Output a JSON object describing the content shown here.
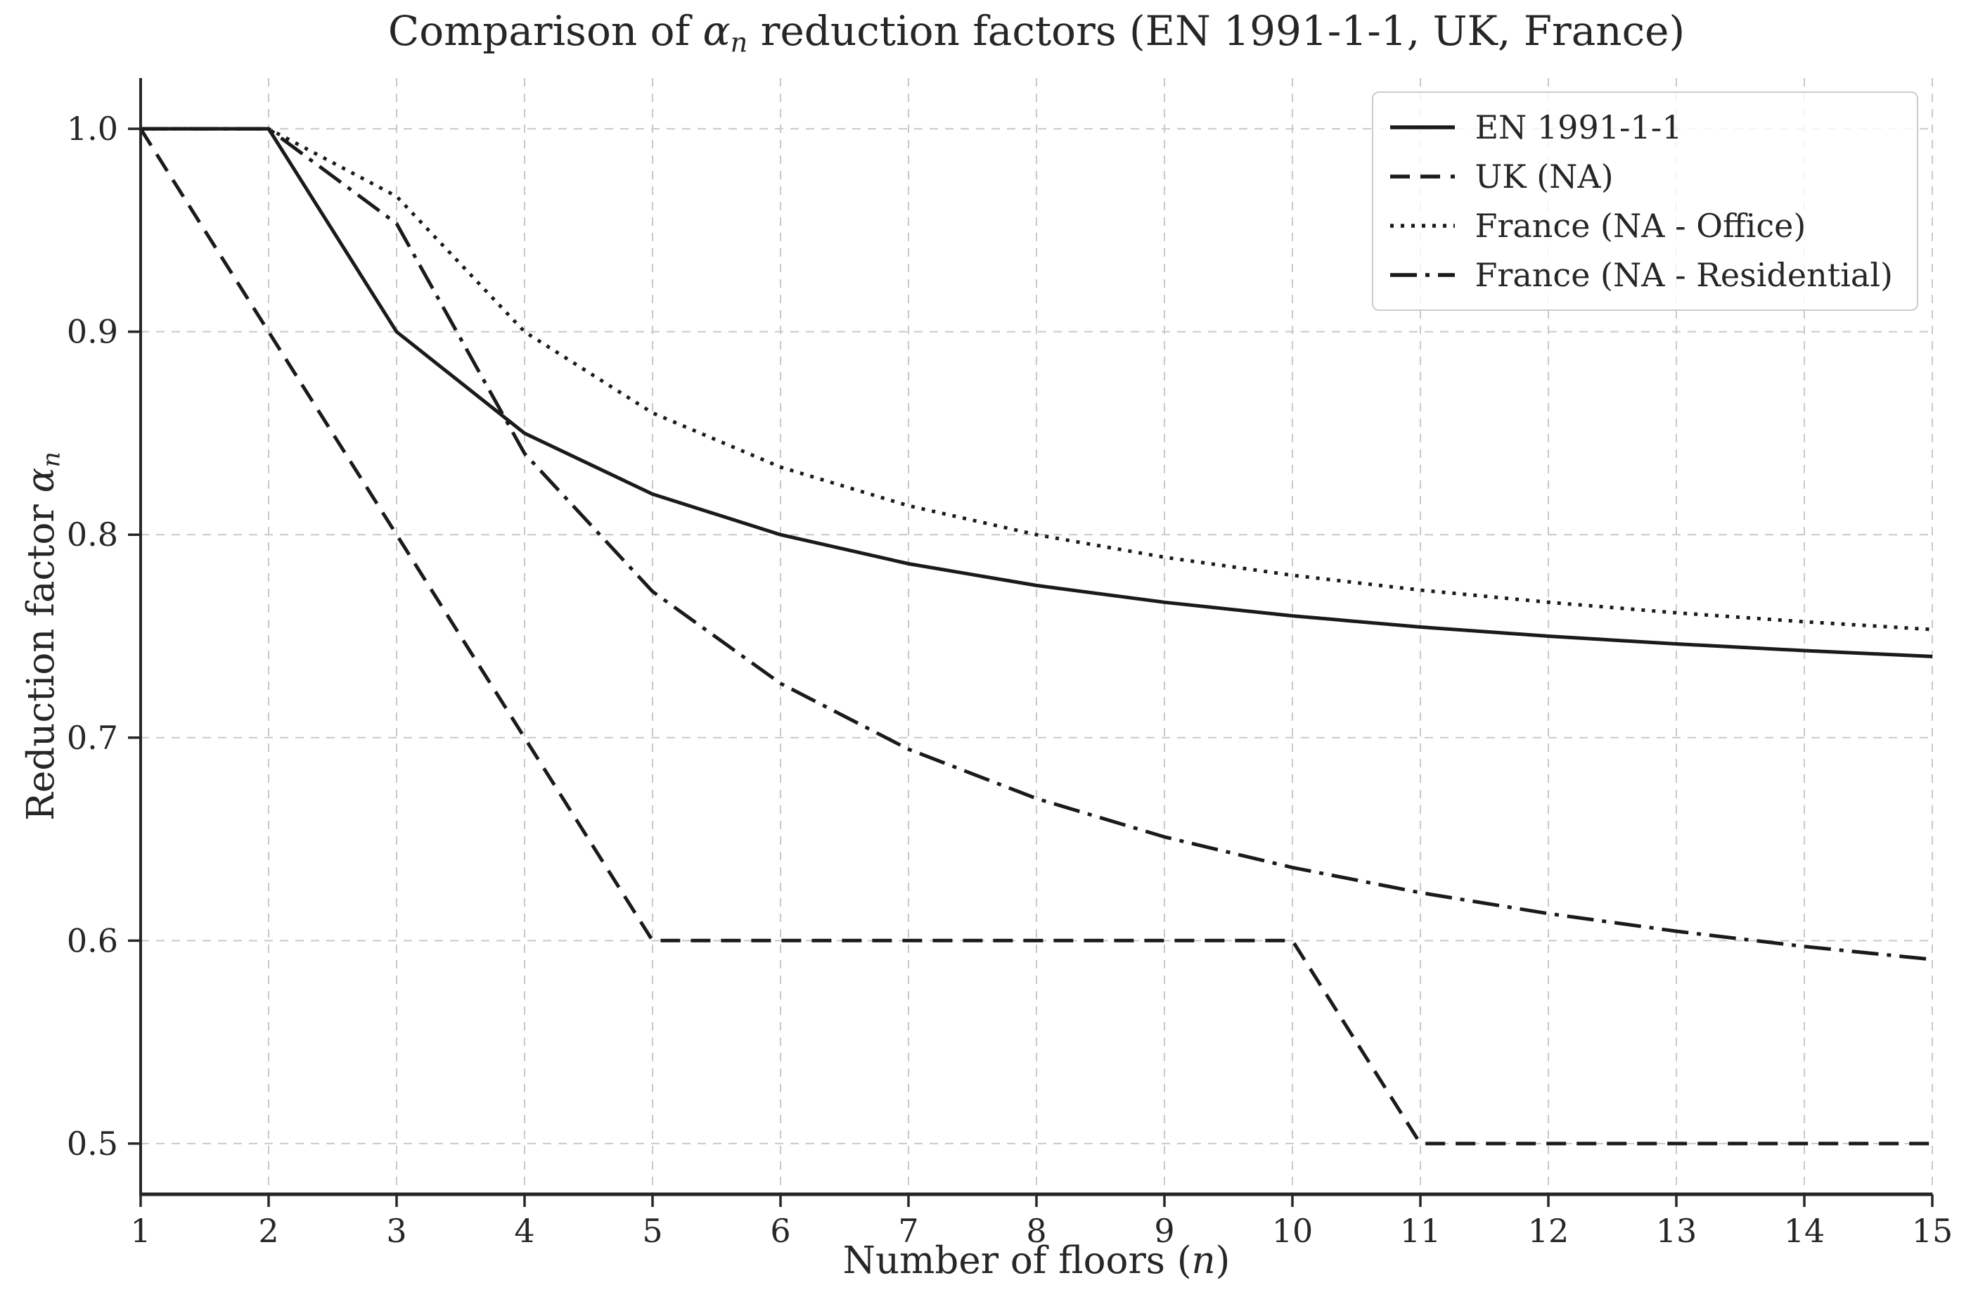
{
  "chart_data": {
    "type": "line",
    "title": "Comparison of αₙ reduction factors (EN 1991-1-1, UK, France)",
    "title_parts": {
      "prefix": "Comparison of ",
      "alpha": "α",
      "alpha_sub": "n",
      "suffix": " reduction factors (EN 1991-1-1, UK, France)"
    },
    "xlabel": "Number of floors (n)",
    "xlabel_parts": {
      "prefix": "Number of floors (",
      "var": "n",
      "suffix": ")"
    },
    "ylabel": "Reduction factor αₙ",
    "ylabel_parts": {
      "prefix": "Reduction factor ",
      "alpha": "α",
      "alpha_sub": "n"
    },
    "x": [
      1,
      2,
      3,
      4,
      5,
      6,
      7,
      8,
      9,
      10,
      11,
      12,
      13,
      14,
      15
    ],
    "xticks": [
      1,
      2,
      3,
      4,
      5,
      6,
      7,
      8,
      9,
      10,
      11,
      12,
      13,
      14,
      15
    ],
    "xtick_labels": [
      "1",
      "2",
      "3",
      "4",
      "5",
      "6",
      "7",
      "8",
      "9",
      "10",
      "11",
      "12",
      "13",
      "14",
      "15"
    ],
    "yticks": [
      0.5,
      0.6,
      0.7,
      0.8,
      0.9,
      1.0
    ],
    "ytick_labels": [
      "0.5",
      "0.6",
      "0.7",
      "0.8",
      "0.9",
      "1.0"
    ],
    "xlim": [
      1,
      15
    ],
    "ylim": [
      0.475,
      1.025
    ],
    "grid": true,
    "grid_color": "#c9c9c9",
    "axis_color": "#262626",
    "line_color": "#1a1a1a",
    "legend_position": "upper right",
    "series": [
      {
        "name": "EN 1991-1-1",
        "linestyle": "solid",
        "values": [
          1.0,
          1.0,
          0.9,
          0.85,
          0.82,
          0.8,
          0.7857,
          0.775,
          0.7667,
          0.76,
          0.7545,
          0.75,
          0.7462,
          0.7429,
          0.74
        ]
      },
      {
        "name": "UK (NA)",
        "linestyle": "dashed",
        "values": [
          1.0,
          0.9,
          0.8,
          0.7,
          0.6,
          0.6,
          0.6,
          0.6,
          0.6,
          0.6,
          0.5,
          0.5,
          0.5,
          0.5,
          0.5
        ]
      },
      {
        "name": "France (NA - Office)",
        "linestyle": "dotted",
        "values": [
          1.0,
          1.0,
          0.9667,
          0.9,
          0.86,
          0.8333,
          0.8143,
          0.8,
          0.7889,
          0.78,
          0.7727,
          0.7667,
          0.7615,
          0.7571,
          0.7533
        ]
      },
      {
        "name": "France (NA - Residential)",
        "linestyle": "dashdot",
        "values": [
          1.0,
          1.0,
          0.9533,
          0.84,
          0.772,
          0.7267,
          0.6943,
          0.67,
          0.6511,
          0.636,
          0.6236,
          0.6133,
          0.6046,
          0.5971,
          0.5907
        ]
      }
    ]
  }
}
